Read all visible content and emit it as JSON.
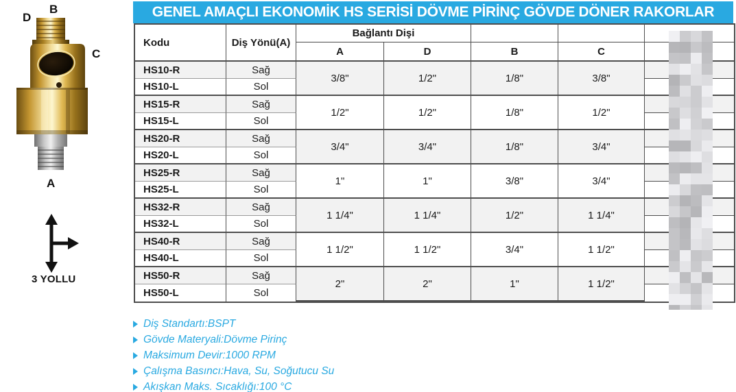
{
  "title": "GENEL AMAÇLI EKONOMİK HS SERİSİ DÖVME PİRİNÇ GÖVDE DÖNER RAKORLAR",
  "product": {
    "port_labels": {
      "a": "A",
      "b": "B",
      "c": "C",
      "d": "D"
    },
    "diagram_label": "3 YOLLU"
  },
  "table": {
    "headers": {
      "kodu": "Kodu",
      "dis_yonu": "Diş Yönü(A)",
      "baglanti_disi": "Bağlantı Dişi",
      "col_a": "A",
      "col_d": "D",
      "col_b": "B",
      "col_c": "C"
    },
    "labels": {
      "sag": "Sağ",
      "sol": "Sol"
    },
    "redacted_column_present": true,
    "groups": [
      {
        "code_r": "HS10-R",
        "code_l": "HS10-L",
        "a": "3/8\"",
        "d": "1/2\"",
        "b": "1/8\"",
        "c": "3/8\""
      },
      {
        "code_r": "HS15-R",
        "code_l": "HS15-L",
        "a": "1/2\"",
        "d": "1/2\"",
        "b": "1/8\"",
        "c": "1/2\""
      },
      {
        "code_r": "HS20-R",
        "code_l": "HS20-L",
        "a": "3/4\"",
        "d": "3/4\"",
        "b": "1/8\"",
        "c": "3/4\""
      },
      {
        "code_r": "HS25-R",
        "code_l": "HS25-L",
        "a": "1\"",
        "d": "1\"",
        "b": "3/8\"",
        "c": "3/4\""
      },
      {
        "code_r": "HS32-R",
        "code_l": "HS32-L",
        "a": "1 1/4\"",
        "d": "1 1/4\"",
        "b": "1/2\"",
        "c": "1 1/4\""
      },
      {
        "code_r": "HS40-R",
        "code_l": "HS40-L",
        "a": "1 1/2\"",
        "d": "1 1/2\"",
        "b": "3/4\"",
        "c": "1 1/2\""
      },
      {
        "code_r": "HS50-R",
        "code_l": "HS50-L",
        "a": "2\"",
        "d": "2\"",
        "b": "1\"",
        "c": "1 1/2\""
      }
    ]
  },
  "notes": [
    "Diş Standartı:BSPT",
    "Gövde Materyali:Dövme Pirinç",
    "Maksimum Devir:1000 RPM",
    "Çalışma Basıncı:Hava, Su, Soğutucu Su",
    "Akışkan Maks. Sıcaklığı:100 °C"
  ],
  "colors": {
    "accent": "#29A9E1",
    "row_alt": "#F2F2F2",
    "border": "#4D4D4D"
  }
}
